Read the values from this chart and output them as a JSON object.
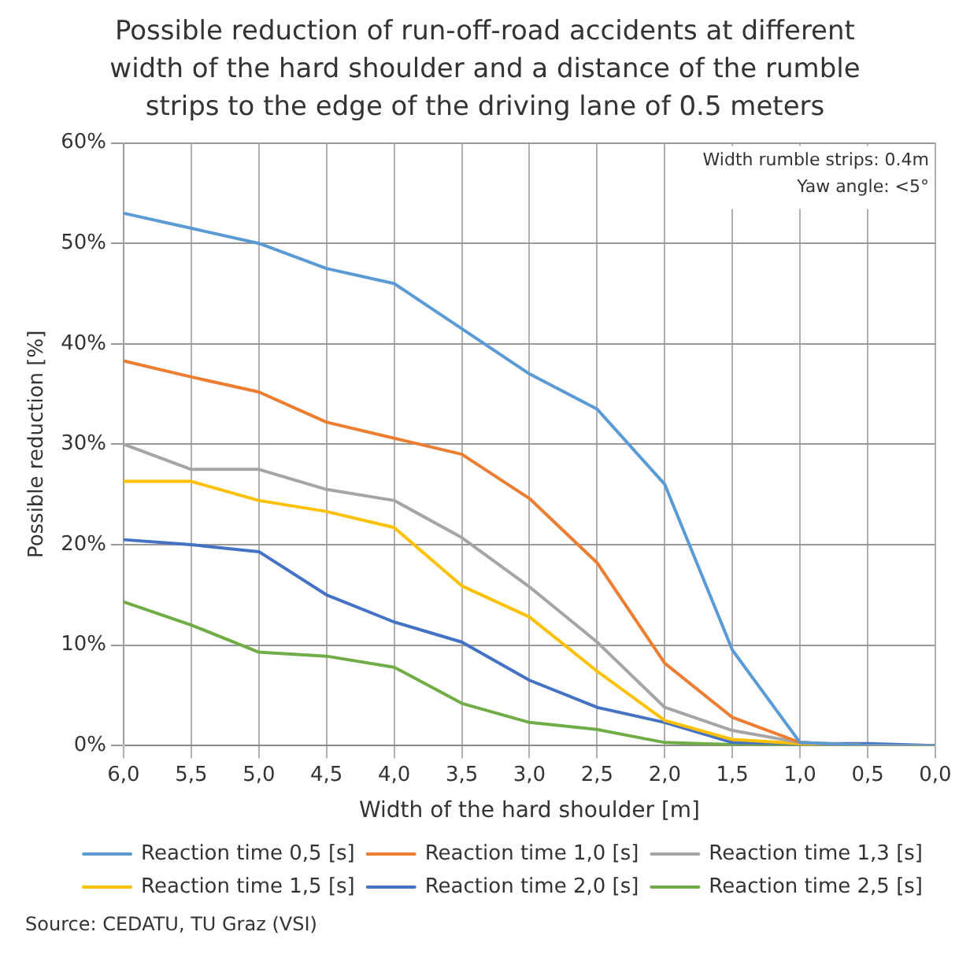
{
  "chart_data": {
    "type": "line",
    "title": "Possible reduction of run-off-road accidents at different width of the hard shoulder and a distance of the rumble strips to the edge of the driving lane of 0.5 meters",
    "xlabel": "Width of the hard shoulder [m]",
    "ylabel": "Possible reduction [%]",
    "categories": [
      "6,0",
      "5,5",
      "5,0",
      "4,5",
      "4,0",
      "3,5",
      "3,0",
      "2,5",
      "2,0",
      "1,5",
      "1,0",
      "0,5",
      "0,0"
    ],
    "series": [
      {
        "name": "Reaction time 0,5 [s]",
        "color": "#5b9bd5",
        "values": [
          53,
          51.5,
          50,
          47.5,
          46,
          41.5,
          37,
          33.5,
          26,
          9.5,
          0.3,
          0,
          0
        ]
      },
      {
        "name": "Reaction time 1,0 [s]",
        "color": "#ed7d31",
        "values": [
          38.3,
          36.7,
          35.2,
          32.2,
          30.6,
          29,
          24.6,
          18.2,
          8.2,
          2.8,
          0.3,
          0,
          0
        ]
      },
      {
        "name": "Reaction time 1,3 [s]",
        "color": "#a5a5a5",
        "values": [
          30,
          27.5,
          27.5,
          25.5,
          24.4,
          20.7,
          15.8,
          10.3,
          3.8,
          1.5,
          0.3,
          0,
          0
        ]
      },
      {
        "name": "Reaction time 1,5 [s]",
        "color": "#ffc000",
        "values": [
          26.3,
          26.3,
          24.4,
          23.3,
          21.7,
          15.9,
          12.8,
          7.4,
          2.5,
          0.6,
          0.2,
          0,
          0
        ]
      },
      {
        "name": "Reaction time 2,0 [s]",
        "color": "#4472c4",
        "values": [
          20.5,
          20,
          19.3,
          15,
          12.3,
          10.3,
          6.5,
          3.8,
          2.3,
          0.3,
          0.2,
          0.2,
          0
        ]
      },
      {
        "name": "Reaction time 2,5 [s]",
        "color": "#70ad47",
        "values": [
          14.3,
          12,
          9.3,
          8.9,
          7.8,
          4.2,
          2.3,
          1.6,
          0.3,
          0.1,
          0,
          0,
          0
        ]
      }
    ],
    "ylim": [
      0,
      60
    ],
    "yticks": [
      {
        "value": 0,
        "label": "0%"
      },
      {
        "value": 10,
        "label": "10%"
      },
      {
        "value": 20,
        "label": "20%"
      },
      {
        "value": 30,
        "label": "30%"
      },
      {
        "value": 40,
        "label": "40%"
      },
      {
        "value": 50,
        "label": "50%"
      },
      {
        "value": 60,
        "label": "60%"
      }
    ],
    "grid": true,
    "legend": "bottom",
    "marker": "none",
    "line_style": "solid",
    "annotations": [
      "Width rumble strips: 0.4m",
      "Yaw angle: <5°",
      "Source: CEDATU, TU Graz (VSI)"
    ]
  }
}
